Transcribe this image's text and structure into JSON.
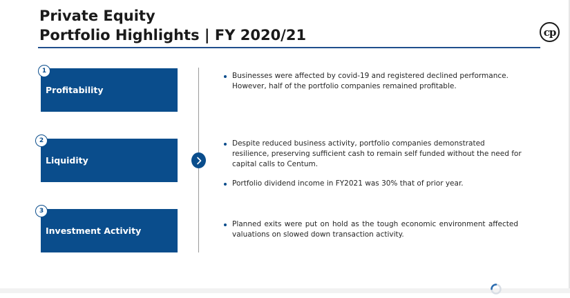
{
  "title": {
    "line1": "Private Equity",
    "line2": "Portfolio Highlights | FY 2020/21"
  },
  "logo": {
    "text": "cp"
  },
  "colors": {
    "accent": "#0a4d8c",
    "rule": "#1f4e8c",
    "text": "#262626"
  },
  "sections": [
    {
      "number": "1",
      "label": "Profitability",
      "bullets": [
        "Businesses were affected by covid-19 and registered declined performance. However, half of the portfolio companies remained profitable."
      ]
    },
    {
      "number": "2",
      "label": "Liquidity",
      "bullets": [
        "Despite reduced business activity, portfolio companies demonstrated resilience, preserving sufficient cash to remain self funded without the need for capital calls to Centum.",
        "Portfolio dividend income in FY2021 was 30% that of prior year."
      ]
    },
    {
      "number": "3",
      "label": "Investment Activity",
      "bullets": [
        "Planned exits were put on hold as the tough economic environment affected valuations on slowed down transaction activity."
      ]
    }
  ],
  "icons": {
    "chevron": "chevron-right-icon",
    "loading": "loading-spinner-icon"
  }
}
